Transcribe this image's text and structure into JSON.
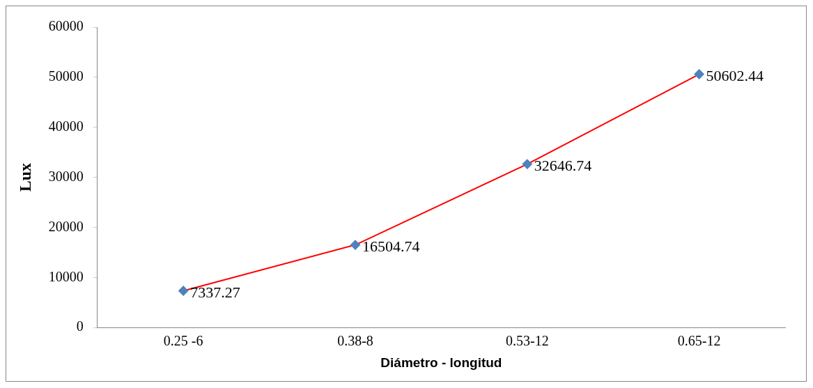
{
  "chart_data": {
    "type": "line",
    "xlabel": "Diámetro - longitud",
    "ylabel": "Lux",
    "categories": [
      "0.25 -6",
      "0.38-8",
      "0.53-12",
      "0.65-12"
    ],
    "series": [
      {
        "color": "#ff0000",
        "colors": [
          "#4f81bd",
          "#4f81bd",
          "#4f81bd",
          "#4f81bd"
        ],
        "values": [
          7337.27,
          16504.74,
          32646.74,
          50602.44
        ]
      }
    ],
    "ylim": [
      0,
      60000
    ],
    "yticks": [
      0,
      10000,
      20000,
      30000,
      40000,
      50000,
      60000
    ],
    "grid": false,
    "legend": false,
    "marker": "diamond",
    "line_style": "solid",
    "data_labels": true
  }
}
